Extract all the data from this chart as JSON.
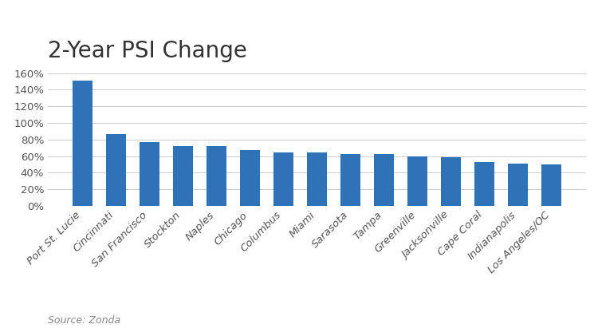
{
  "title": "2-Year PSI Change",
  "categories": [
    "Port St. Lucie",
    "Cincinnati",
    "San Francisco",
    "Stockton",
    "Naples",
    "Chicago",
    "Columbus",
    "Miami",
    "Sarasota",
    "Tampa",
    "Greenville",
    "Jacksonville",
    "Cape Coral",
    "Indianapolis",
    "Los Angeles/OC"
  ],
  "values": [
    151,
    86,
    77,
    72,
    72,
    67,
    64,
    64,
    62,
    62,
    60,
    59,
    53,
    51,
    50
  ],
  "bar_color": "#2f72b8",
  "ylim": [
    0,
    160
  ],
  "yticks": [
    0,
    20,
    40,
    60,
    80,
    100,
    120,
    140,
    160
  ],
  "background_color": "#ffffff",
  "source_text": "Source: Zonda",
  "title_fontsize": 20,
  "source_fontsize": 9,
  "tick_fontsize": 9.5,
  "bar_width": 0.6
}
